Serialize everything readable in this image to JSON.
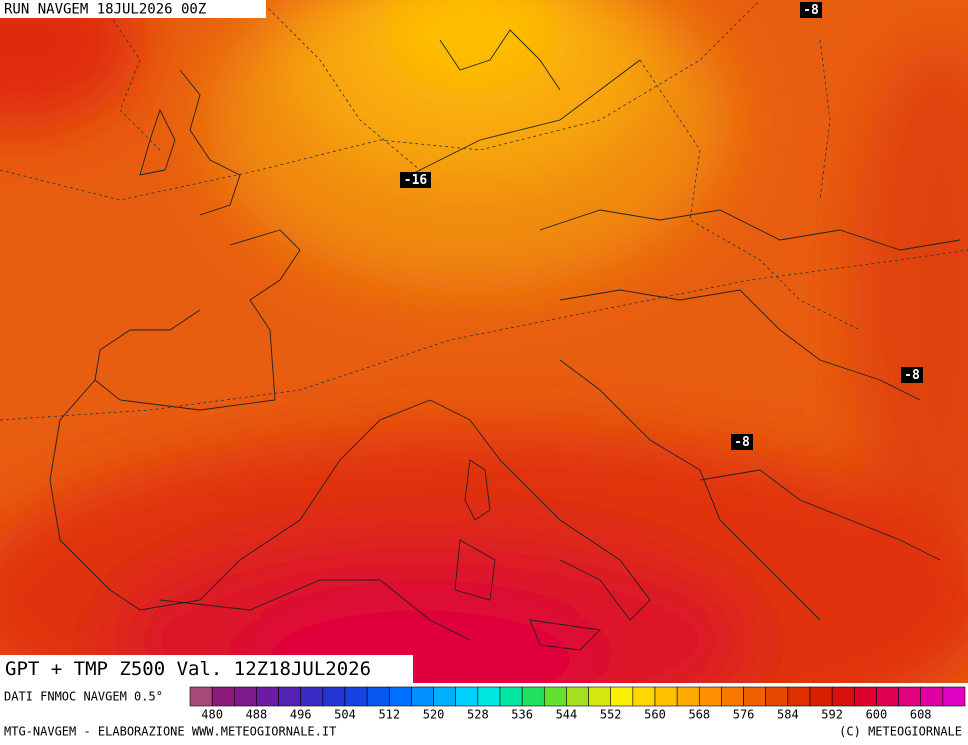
{
  "header": {
    "run": "RUN NAVGEM 18JUL2026 00Z"
  },
  "map_labels": [
    "-16",
    "-8",
    "-8",
    "-8"
  ],
  "title": "GPT + TMP Z500 Val. 12Z18JUL2026",
  "source": "DATI FNMOC NAVGEM 0.5°",
  "colorbar": {
    "labels": [
      480,
      488,
      496,
      504,
      512,
      520,
      528,
      536,
      544,
      552,
      560,
      568,
      576,
      584,
      592,
      600,
      608
    ],
    "colors": [
      "#a84a78",
      "#8e1a7c",
      "#7e1a8c",
      "#6c1ca2",
      "#5422b4",
      "#3c2ac4",
      "#2634d4",
      "#1444e4",
      "#0656f2",
      "#0072ff",
      "#0090ff",
      "#00b0ff",
      "#00d0ff",
      "#00e6e0",
      "#00e6a0",
      "#20e060",
      "#64e030",
      "#a4e020",
      "#d4e810",
      "#f8f000",
      "#ffd800",
      "#ffc000",
      "#ffa800",
      "#ff9000",
      "#f87800",
      "#f06000",
      "#e84800",
      "#e03000",
      "#d82000",
      "#d81010",
      "#e00030",
      "#e00050",
      "#e00080",
      "#e000a4",
      "#e000c4"
    ]
  },
  "footer": {
    "left": "MTG-NAVGEM - ELABORAZIONE WWW.METEOGIORNALE.IT",
    "right": "(C) METEOGIORNALE"
  }
}
